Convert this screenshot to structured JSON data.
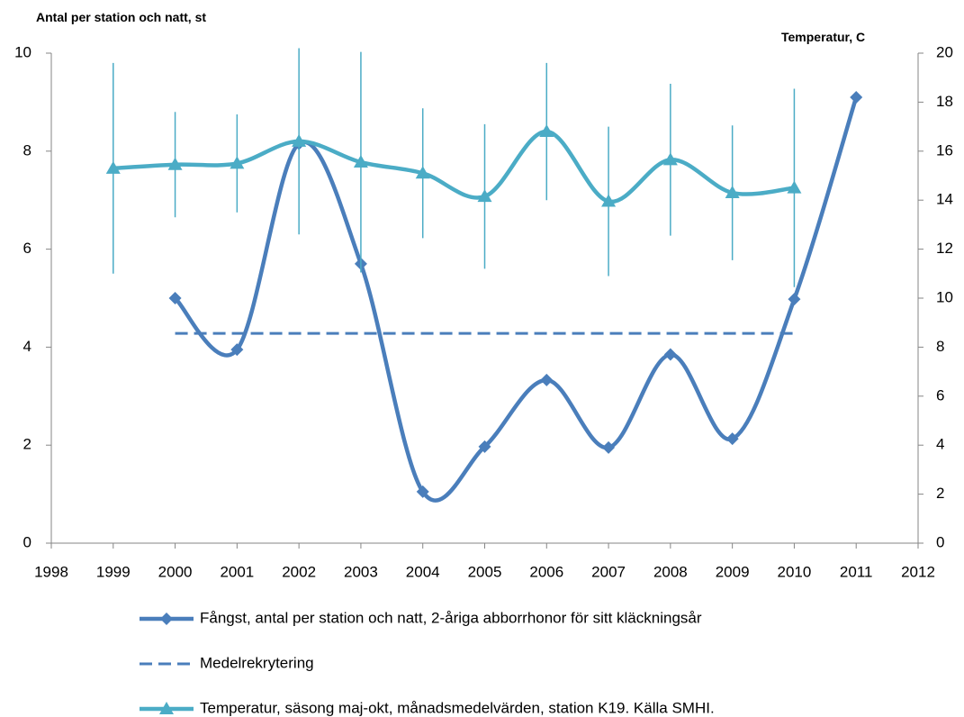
{
  "chart_data": {
    "type": "line",
    "y_label": "Antal per station och natt, st",
    "y2_label": "Temperatur, C",
    "x": [
      1999,
      2000,
      2001,
      2002,
      2003,
      2004,
      2005,
      2006,
      2007,
      2008,
      2009,
      2010,
      2011
    ],
    "xlim": [
      1998,
      2012
    ],
    "xticks": [
      1998,
      1999,
      2000,
      2001,
      2002,
      2003,
      2004,
      2005,
      2006,
      2007,
      2008,
      2009,
      2010,
      2011,
      2012
    ],
    "ylim": [
      0,
      10
    ],
    "yticks": [
      0,
      2,
      4,
      6,
      8,
      10
    ],
    "y2lim": [
      0,
      20
    ],
    "y2ticks": [
      0,
      2,
      4,
      6,
      8,
      10,
      12,
      14,
      16,
      18,
      20
    ],
    "grid": false,
    "legend": "bottom",
    "series": [
      {
        "name": "Fångst, antal per station och natt, 2-åriga abborrhonor för sitt kläckningsår",
        "color": "#4a7ebb",
        "marker": "diamond",
        "smooth": true,
        "values": [
          null,
          5.0,
          3.95,
          8.15,
          5.7,
          1.05,
          1.97,
          3.33,
          1.95,
          3.85,
          2.13,
          4.98,
          9.1
        ]
      },
      {
        "name": "Medelrekrytering",
        "color": "#4a7ebb",
        "dashed": true,
        "values": [
          null,
          4.28,
          4.28,
          4.28,
          4.28,
          4.28,
          4.28,
          4.28,
          4.28,
          4.28,
          4.28,
          4.28,
          null
        ]
      },
      {
        "name": "Temperatur, säsong maj-okt, månadsmedelvärden, station K19. Källa SMHI.",
        "color": "#4bacc6",
        "marker": "triangle",
        "smooth": true,
        "axis": "y2",
        "values": [
          15.3,
          15.45,
          15.5,
          16.4,
          15.55,
          15.1,
          14.15,
          16.8,
          13.95,
          15.65,
          14.3,
          14.5,
          null
        ],
        "errors": [
          4.3,
          2.15,
          2.0,
          3.8,
          4.5,
          2.65,
          2.95,
          2.8,
          3.05,
          3.1,
          2.75,
          4.05,
          null
        ]
      }
    ]
  }
}
